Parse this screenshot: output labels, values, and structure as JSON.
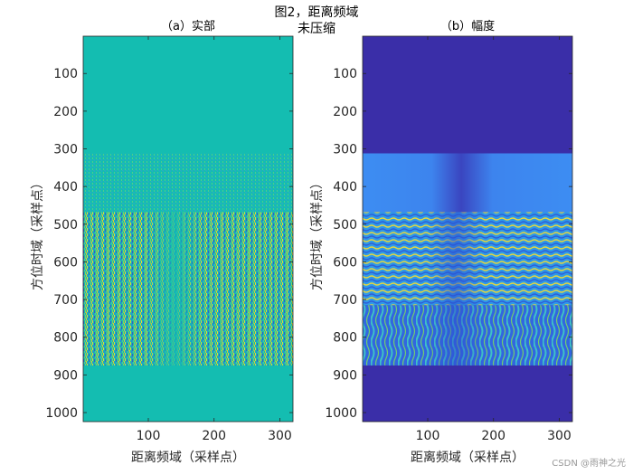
{
  "figure": {
    "suptitle_line1": "图2，距离频域",
    "suptitle_line2": "未压缩",
    "watermark": "CSDN @雨神之光"
  },
  "chart_data": [
    {
      "type": "heatmap",
      "title": "（a）实部",
      "xlabel": "距离频域（采样点）",
      "ylabel": "方位时域（采样点）",
      "xlim": [
        1,
        320
      ],
      "ylim": [
        1,
        1024
      ],
      "y_reversed": true,
      "xticks": [
        100,
        200,
        300
      ],
      "yticks": [
        100,
        200,
        300,
        400,
        500,
        600,
        700,
        800,
        900,
        1000
      ],
      "colormap": "parula",
      "background_color": "#14bdb1",
      "bands": [
        {
          "y_start": 1,
          "y_end": 312,
          "pattern": "uniform"
        },
        {
          "y_start": 312,
          "y_end": 468,
          "pattern": "fine-texture"
        },
        {
          "y_start": 468,
          "y_end": 875,
          "pattern": "high-frequency-noise"
        },
        {
          "y_start": 875,
          "y_end": 1024,
          "pattern": "uniform"
        }
      ]
    },
    {
      "type": "heatmap",
      "title": "（b）幅度",
      "xlabel": "距离频域（采样点）",
      "ylabel": "方位时域（采样点）",
      "xlim": [
        1,
        320
      ],
      "ylim": [
        1,
        1024
      ],
      "y_reversed": true,
      "xticks": [
        100,
        200,
        300
      ],
      "yticks": [
        100,
        200,
        300,
        400,
        500,
        600,
        700,
        800,
        900,
        1000
      ],
      "colormap": "parula",
      "background_color": "#3a2ea8",
      "bands": [
        {
          "y_start": 1,
          "y_end": 312,
          "level": "low",
          "color": "#3a2ea8"
        },
        {
          "y_start": 312,
          "y_end": 468,
          "level": "medium",
          "color": "#3c8cf2",
          "dark_center_x": 150
        },
        {
          "y_start": 468,
          "y_end": 715,
          "level": "high",
          "pattern": "fine-wavy-stripes"
        },
        {
          "y_start": 715,
          "y_end": 875,
          "level": "high",
          "pattern": "wide-wavy-stripes"
        },
        {
          "y_start": 875,
          "y_end": 1024,
          "level": "low",
          "color": "#3a2ea8"
        }
      ]
    }
  ]
}
